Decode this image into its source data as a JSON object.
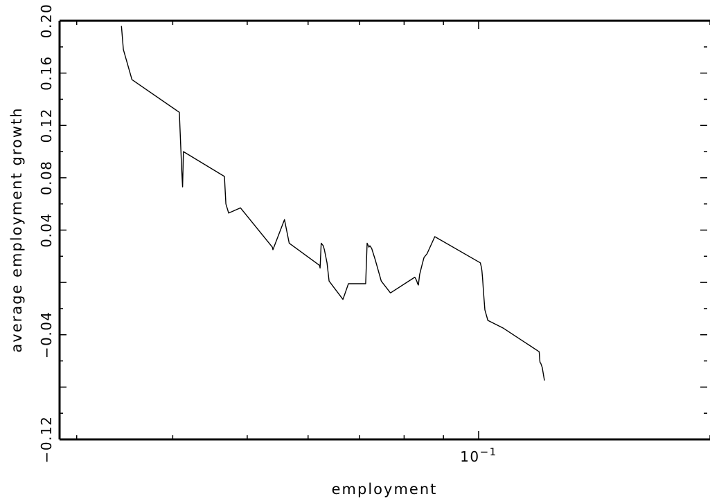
{
  "chart_data": {
    "type": "line",
    "xlabel": "employment",
    "ylabel": "average employment growth",
    "xscale": "log",
    "xlim": [
      0.0285,
      0.2
    ],
    "ylim": [
      -0.12,
      0.2
    ],
    "xticks": [
      {
        "value": 0.1,
        "base": "10",
        "exp": "−1"
      }
    ],
    "yticks": [
      {
        "value": -0.12,
        "label": "−0.12"
      },
      {
        "value": -0.04,
        "label": "−0.04"
      },
      {
        "value": 0.0,
        "label": ""
      },
      {
        "value": 0.04,
        "label": "0.04"
      },
      {
        "value": 0.08,
        "label": "0.08"
      },
      {
        "value": 0.12,
        "label": "0.12"
      },
      {
        "value": 0.16,
        "label": "0.16"
      },
      {
        "value": 0.2,
        "label": "0.20"
      }
    ],
    "grid": false,
    "series": [
      {
        "color": "#000000",
        "x": [
          0.0343,
          0.0345,
          0.0354,
          0.0408,
          0.0411,
          0.0412,
          0.0413,
          0.0467,
          0.0469,
          0.0473,
          0.049,
          0.0539,
          0.054,
          0.0559,
          0.0567,
          0.0621,
          0.0622,
          0.0624,
          0.0628,
          0.063,
          0.0635,
          0.0639,
          0.0666,
          0.0677,
          0.0713,
          0.0716,
          0.072,
          0.0722,
          0.0726,
          0.0734,
          0.0747,
          0.0768,
          0.0826,
          0.0828,
          0.0831,
          0.0833,
          0.0835,
          0.0838,
          0.0843,
          0.0849,
          0.0857,
          0.0877,
          0.1005,
          0.1008,
          0.101,
          0.1012,
          0.1015,
          0.1019,
          0.1028,
          0.1077,
          0.1199,
          0.1201,
          0.1202,
          0.1205,
          0.121,
          0.1218
        ],
        "y": [
          0.196,
          0.178,
          0.155,
          0.13,
          0.085,
          0.073,
          0.1,
          0.081,
          0.06,
          0.053,
          0.057,
          0.027,
          0.025,
          0.048,
          0.03,
          0.013,
          0.011,
          0.03,
          0.028,
          0.025,
          0.015,
          0.001,
          -0.013,
          -0.001,
          -0.001,
          0.03,
          0.027,
          0.028,
          0.026,
          0.017,
          0.001,
          -0.008,
          0.004,
          0.003,
          0.001,
          -0.001,
          -0.002,
          0.006,
          0.012,
          0.019,
          0.022,
          0.035,
          0.015,
          0.012,
          0.009,
          0.003,
          -0.008,
          -0.021,
          -0.029,
          -0.035,
          -0.053,
          -0.059,
          -0.061,
          -0.062,
          -0.065,
          -0.075
        ],
        "y_sign": -1
      }
    ]
  }
}
